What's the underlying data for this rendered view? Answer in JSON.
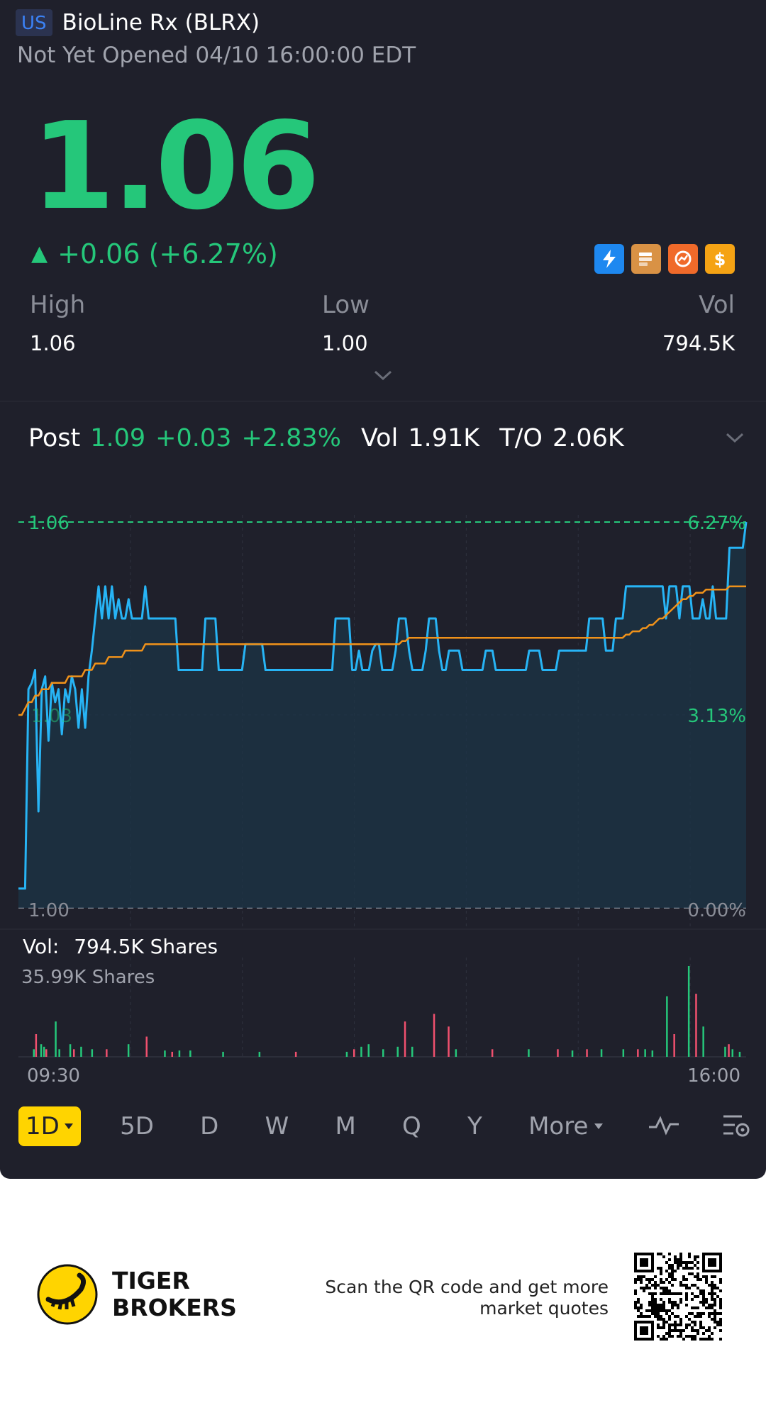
{
  "header": {
    "market_badge": "US",
    "title": "BioLine Rx (BLRX)",
    "status": "Not Yet Opened 04/10 16:00:00 EDT"
  },
  "quote": {
    "price": "1.06",
    "arrow": "▲",
    "change": "+0.06 (+6.27%)",
    "color_up": "#25c77a",
    "feature_icons": [
      "lightning-icon",
      "level-icon",
      "chart-ring-icon",
      "dollar-icon"
    ]
  },
  "stats": {
    "high_label": "High",
    "high_value": "1.06",
    "low_label": "Low",
    "low_value": "1.00",
    "vol_label": "Vol",
    "vol_value": "794.5K"
  },
  "post": {
    "label": "Post",
    "price": "1.09",
    "change": "+0.03",
    "pct": "+2.83%",
    "vol_label": "Vol",
    "vol_value": "1.91K",
    "to_label": "T/O",
    "to_value": "2.06K"
  },
  "chart_data": {
    "type": "line",
    "price_axis": {
      "top": "1.06",
      "bottom": "1.00",
      "mid_left": "1.03"
    },
    "pct_axis": {
      "top": "6.27%",
      "mid": "3.13%",
      "bottom": "0.00%"
    },
    "ylim": [
      1.0,
      1.06
    ],
    "time_labels": [
      "09:30",
      "16:00"
    ],
    "series": [
      {
        "color": "#27b4f5",
        "values": [
          1.003,
          1.003,
          1.003,
          1.034,
          1.035,
          1.037,
          1.015,
          1.034,
          1.036,
          1.026,
          1.035,
          1.032,
          1.034,
          1.027,
          1.034,
          1.032,
          1.036,
          1.034,
          1.028,
          1.034,
          1.028,
          1.036,
          1.04,
          1.045,
          1.05,
          1.045,
          1.05,
          1.045,
          1.05,
          1.045,
          1.048,
          1.045,
          1.045,
          1.048,
          1.045,
          1.045,
          1.045,
          1.045,
          1.05,
          1.045,
          1.045,
          1.045,
          1.045,
          1.045,
          1.045,
          1.045,
          1.045,
          1.045,
          1.037,
          1.037,
          1.037,
          1.037,
          1.037,
          1.037,
          1.037,
          1.037,
          1.045,
          1.045,
          1.045,
          1.045,
          1.037,
          1.037,
          1.037,
          1.037,
          1.037,
          1.037,
          1.037,
          1.037,
          1.041,
          1.041,
          1.041,
          1.041,
          1.041,
          1.041,
          1.037,
          1.037,
          1.037,
          1.037,
          1.037,
          1.037,
          1.037,
          1.037,
          1.037,
          1.037,
          1.037,
          1.037,
          1.037,
          1.037,
          1.037,
          1.037,
          1.037,
          1.037,
          1.037,
          1.037,
          1.037,
          1.045,
          1.045,
          1.045,
          1.045,
          1.045,
          1.037,
          1.037,
          1.04,
          1.037,
          1.037,
          1.037,
          1.04,
          1.041,
          1.041,
          1.037,
          1.037,
          1.037,
          1.037,
          1.04,
          1.045,
          1.045,
          1.045,
          1.04,
          1.037,
          1.037,
          1.037,
          1.037,
          1.04,
          1.045,
          1.045,
          1.045,
          1.04,
          1.037,
          1.037,
          1.04,
          1.04,
          1.04,
          1.04,
          1.037,
          1.037,
          1.037,
          1.037,
          1.037,
          1.037,
          1.037,
          1.04,
          1.04,
          1.04,
          1.037,
          1.037,
          1.037,
          1.037,
          1.037,
          1.037,
          1.037,
          1.037,
          1.037,
          1.037,
          1.04,
          1.04,
          1.04,
          1.04,
          1.037,
          1.037,
          1.037,
          1.037,
          1.037,
          1.04,
          1.04,
          1.04,
          1.04,
          1.04,
          1.04,
          1.04,
          1.04,
          1.04,
          1.045,
          1.045,
          1.045,
          1.045,
          1.045,
          1.04,
          1.04,
          1.04,
          1.045,
          1.045,
          1.045,
          1.05,
          1.05,
          1.05,
          1.05,
          1.05,
          1.05,
          1.05,
          1.05,
          1.05,
          1.05,
          1.05,
          1.05,
          1.045,
          1.05,
          1.05,
          1.05,
          1.045,
          1.05,
          1.05,
          1.05,
          1.045,
          1.045,
          1.045,
          1.048,
          1.045,
          1.045,
          1.05,
          1.045,
          1.045,
          1.045,
          1.045,
          1.056,
          1.056,
          1.056,
          1.056,
          1.056,
          1.06
        ]
      },
      {
        "color": "#f0921a",
        "values": [
          1.03,
          1.03,
          1.031,
          1.032,
          1.032,
          1.033,
          1.033,
          1.034,
          1.034,
          1.034,
          1.035,
          1.035,
          1.035,
          1.035,
          1.035,
          1.036,
          1.036,
          1.036,
          1.036,
          1.036,
          1.037,
          1.037,
          1.037,
          1.038,
          1.038,
          1.038,
          1.038,
          1.039,
          1.039,
          1.039,
          1.039,
          1.039,
          1.04,
          1.04,
          1.04,
          1.04,
          1.04,
          1.04,
          1.041,
          1.041,
          1.041,
          1.041,
          1.041,
          1.041,
          1.041,
          1.041,
          1.041,
          1.041,
          1.041,
          1.041,
          1.041,
          1.041,
          1.041,
          1.041,
          1.041,
          1.041,
          1.041,
          1.041,
          1.041,
          1.041,
          1.041,
          1.041,
          1.041,
          1.041,
          1.041,
          1.041,
          1.041,
          1.041,
          1.041,
          1.041,
          1.041,
          1.041,
          1.041,
          1.041,
          1.041,
          1.041,
          1.041,
          1.041,
          1.041,
          1.041,
          1.041,
          1.041,
          1.041,
          1.041,
          1.041,
          1.041,
          1.041,
          1.041,
          1.041,
          1.041,
          1.041,
          1.041,
          1.041,
          1.041,
          1.041,
          1.041,
          1.041,
          1.041,
          1.041,
          1.041,
          1.041,
          1.041,
          1.041,
          1.041,
          1.041,
          1.041,
          1.041,
          1.041,
          1.041,
          1.041,
          1.041,
          1.041,
          1.041,
          1.041,
          1.041,
          1.0415,
          1.0415,
          1.042,
          1.042,
          1.042,
          1.042,
          1.042,
          1.042,
          1.042,
          1.042,
          1.042,
          1.042,
          1.042,
          1.042,
          1.042,
          1.042,
          1.042,
          1.042,
          1.042,
          1.042,
          1.042,
          1.042,
          1.042,
          1.042,
          1.042,
          1.042,
          1.042,
          1.042,
          1.042,
          1.042,
          1.042,
          1.042,
          1.042,
          1.042,
          1.042,
          1.042,
          1.042,
          1.042,
          1.042,
          1.042,
          1.042,
          1.042,
          1.042,
          1.042,
          1.042,
          1.042,
          1.042,
          1.042,
          1.042,
          1.042,
          1.042,
          1.042,
          1.042,
          1.042,
          1.042,
          1.042,
          1.042,
          1.042,
          1.042,
          1.042,
          1.042,
          1.042,
          1.042,
          1.042,
          1.042,
          1.042,
          1.042,
          1.0425,
          1.0425,
          1.043,
          1.043,
          1.043,
          1.0435,
          1.0435,
          1.044,
          1.044,
          1.0445,
          1.045,
          1.045,
          1.0455,
          1.046,
          1.0465,
          1.047,
          1.0475,
          1.048,
          1.048,
          1.0485,
          1.0485,
          1.049,
          1.049,
          1.049,
          1.0495,
          1.0495,
          1.0495,
          1.0495,
          1.0495,
          1.0495,
          1.0495,
          1.05,
          1.05,
          1.05,
          1.05,
          1.05,
          1.05
        ]
      }
    ],
    "volume": {
      "label": "Vol:",
      "value": "794.5K Shares",
      "max_label": "35.99K Shares",
      "max": 35990,
      "bars": [
        {
          "x": 0.02,
          "v": 3000,
          "c": "g"
        },
        {
          "x": 0.023,
          "v": 9000,
          "c": "r"
        },
        {
          "x": 0.03,
          "v": 5000,
          "c": "g"
        },
        {
          "x": 0.034,
          "v": 4000,
          "c": "g"
        },
        {
          "x": 0.037,
          "v": 3000,
          "c": "r"
        },
        {
          "x": 0.05,
          "v": 14000,
          "c": "g"
        },
        {
          "x": 0.055,
          "v": 3000,
          "c": "g"
        },
        {
          "x": 0.07,
          "v": 5000,
          "c": "g"
        },
        {
          "x": 0.075,
          "v": 3000,
          "c": "r"
        },
        {
          "x": 0.085,
          "v": 4000,
          "c": "g"
        },
        {
          "x": 0.1,
          "v": 3000,
          "c": "g"
        },
        {
          "x": 0.12,
          "v": 3000,
          "c": "r"
        },
        {
          "x": 0.15,
          "v": 5000,
          "c": "g"
        },
        {
          "x": 0.175,
          "v": 8000,
          "c": "r"
        },
        {
          "x": 0.2,
          "v": 2500,
          "c": "g"
        },
        {
          "x": 0.21,
          "v": 2000,
          "c": "r"
        },
        {
          "x": 0.22,
          "v": 2500,
          "c": "g"
        },
        {
          "x": 0.235,
          "v": 2500,
          "c": "g"
        },
        {
          "x": 0.28,
          "v": 2000,
          "c": "g"
        },
        {
          "x": 0.33,
          "v": 2000,
          "c": "g"
        },
        {
          "x": 0.38,
          "v": 2000,
          "c": "r"
        },
        {
          "x": 0.45,
          "v": 2000,
          "c": "g"
        },
        {
          "x": 0.46,
          "v": 3000,
          "c": "r"
        },
        {
          "x": 0.47,
          "v": 4000,
          "c": "g"
        },
        {
          "x": 0.48,
          "v": 5000,
          "c": "g"
        },
        {
          "x": 0.5,
          "v": 3000,
          "c": "g"
        },
        {
          "x": 0.52,
          "v": 4000,
          "c": "g"
        },
        {
          "x": 0.53,
          "v": 14000,
          "c": "r"
        },
        {
          "x": 0.54,
          "v": 4000,
          "c": "g"
        },
        {
          "x": 0.57,
          "v": 17000,
          "c": "r"
        },
        {
          "x": 0.59,
          "v": 12000,
          "c": "r"
        },
        {
          "x": 0.6,
          "v": 3000,
          "c": "g"
        },
        {
          "x": 0.65,
          "v": 3000,
          "c": "r"
        },
        {
          "x": 0.7,
          "v": 3000,
          "c": "g"
        },
        {
          "x": 0.74,
          "v": 3000,
          "c": "r"
        },
        {
          "x": 0.76,
          "v": 2500,
          "c": "g"
        },
        {
          "x": 0.78,
          "v": 3000,
          "c": "r"
        },
        {
          "x": 0.8,
          "v": 3000,
          "c": "g"
        },
        {
          "x": 0.83,
          "v": 3000,
          "c": "g"
        },
        {
          "x": 0.85,
          "v": 3000,
          "c": "r"
        },
        {
          "x": 0.86,
          "v": 3000,
          "c": "g"
        },
        {
          "x": 0.87,
          "v": 2500,
          "c": "g"
        },
        {
          "x": 0.89,
          "v": 24000,
          "c": "g"
        },
        {
          "x": 0.9,
          "v": 9000,
          "c": "r"
        },
        {
          "x": 0.92,
          "v": 35990,
          "c": "g"
        },
        {
          "x": 0.93,
          "v": 25000,
          "c": "r"
        },
        {
          "x": 0.94,
          "v": 12000,
          "c": "g"
        },
        {
          "x": 0.97,
          "v": 4000,
          "c": "g"
        },
        {
          "x": 0.975,
          "v": 5000,
          "c": "r"
        },
        {
          "x": 0.98,
          "v": 3000,
          "c": "g"
        },
        {
          "x": 0.99,
          "v": 2000,
          "c": "g"
        }
      ]
    }
  },
  "timeframes": [
    "1D",
    "5D",
    "D",
    "W",
    "M",
    "Q",
    "Y"
  ],
  "more_label": "More",
  "footer": {
    "brand_line1": "TIGER",
    "brand_line2": "BROKERS",
    "scan_text": "Scan the QR code and get more market quotes"
  }
}
